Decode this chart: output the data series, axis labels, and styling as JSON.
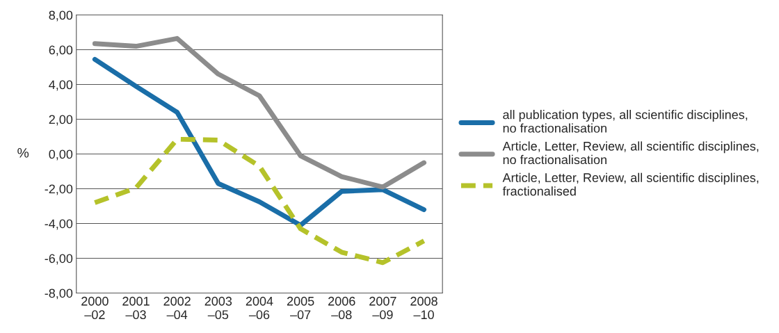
{
  "chart_data": {
    "type": "line",
    "ylabel": "%",
    "categories": [
      "2000\n–02",
      "2001\n–03",
      "2002\n–04",
      "2003\n–05",
      "2004\n–06",
      "2005\n–07",
      "2006\n–08",
      "2007\n–09",
      "2008\n–10"
    ],
    "series": [
      {
        "name": "all publication types, all scientific disciplines,\nno fractionalisation",
        "color": "#1a6ea8",
        "line_style": "solid",
        "values": [
          5.45,
          3.9,
          2.4,
          -1.7,
          -2.75,
          -4.1,
          -2.15,
          -2.05,
          -3.2
        ]
      },
      {
        "name": "Article, Letter, Review, all scientific disciplines,\nno fractionalisation",
        "color": "#8c8c8c",
        "line_style": "solid",
        "values": [
          6.35,
          6.2,
          6.65,
          4.6,
          3.35,
          -0.1,
          -1.3,
          -1.9,
          -0.5
        ]
      },
      {
        "name": "Article, Letter, Review, all scientific disciplines,\nfractionalised",
        "color": "#b5c22a",
        "line_style": "dashed",
        "values": [
          -2.8,
          -1.95,
          0.85,
          0.8,
          -0.7,
          -4.3,
          -5.65,
          -6.25,
          -5.0
        ]
      }
    ],
    "ylim": [
      -8,
      8
    ],
    "yticks": [
      {
        "value": -8,
        "label": "-8,00"
      },
      {
        "value": -6,
        "label": "-6,00"
      },
      {
        "value": -4,
        "label": "-4,00"
      },
      {
        "value": -2,
        "label": "-2,00"
      },
      {
        "value": 0,
        "label": "0,00"
      },
      {
        "value": 2,
        "label": "2,00"
      },
      {
        "value": 4,
        "label": "4,00"
      },
      {
        "value": 6,
        "label": "6,00"
      },
      {
        "value": 8,
        "label": "8,00"
      }
    ],
    "grid": "y",
    "legend": "right"
  }
}
